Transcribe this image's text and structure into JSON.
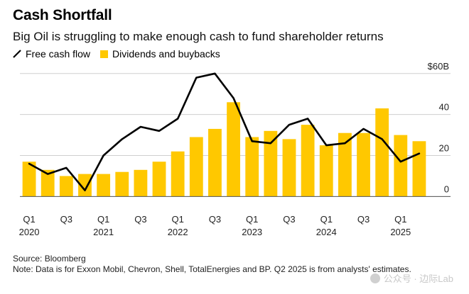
{
  "header": {
    "title": "Cash Shortfall",
    "subtitle": "Big Oil is struggling to make enough cash to fund shareholder returns"
  },
  "legend": {
    "line_label": "Free cash flow",
    "bar_label": "Dividends and buybacks"
  },
  "colors": {
    "bar": "#FFC800",
    "line": "#000000",
    "grid": "#cfcfcf"
  },
  "chart_data": {
    "type": "bar",
    "title": "Cash Shortfall",
    "categories": [
      "Q1 2020",
      "Q2 2020",
      "Q3 2020",
      "Q4 2020",
      "Q1 2021",
      "Q2 2021",
      "Q3 2021",
      "Q4 2021",
      "Q1 2022",
      "Q2 2022",
      "Q3 2022",
      "Q4 2022",
      "Q1 2023",
      "Q2 2023",
      "Q3 2023",
      "Q4 2023",
      "Q1 2024",
      "Q2 2024",
      "Q3 2024",
      "Q4 2024",
      "Q1 2025",
      "Q2 2025"
    ],
    "x_tick_labels": [
      {
        "index": 0,
        "quarter": "Q1",
        "year": "2020"
      },
      {
        "index": 2,
        "quarter": "Q3",
        "year": ""
      },
      {
        "index": 4,
        "quarter": "Q1",
        "year": "2021"
      },
      {
        "index": 6,
        "quarter": "Q3",
        "year": ""
      },
      {
        "index": 8,
        "quarter": "Q1",
        "year": "2022"
      },
      {
        "index": 10,
        "quarter": "Q3",
        "year": ""
      },
      {
        "index": 12,
        "quarter": "Q1",
        "year": "2023"
      },
      {
        "index": 14,
        "quarter": "Q3",
        "year": ""
      },
      {
        "index": 16,
        "quarter": "Q1",
        "year": "2024"
      },
      {
        "index": 18,
        "quarter": "Q3",
        "year": ""
      },
      {
        "index": 20,
        "quarter": "Q1",
        "year": "2025"
      }
    ],
    "series": [
      {
        "name": "Dividends and buybacks",
        "type": "bar",
        "values": [
          17,
          13,
          10,
          11,
          11,
          12,
          13,
          17,
          22,
          29,
          33,
          46,
          29,
          32,
          28,
          35,
          25,
          31,
          31,
          43,
          30,
          27
        ]
      },
      {
        "name": "Free cash flow",
        "type": "line",
        "values": [
          16,
          11,
          14,
          3,
          20,
          28,
          34,
          32,
          38,
          58,
          60,
          48,
          27,
          26,
          35,
          38,
          25,
          26,
          33,
          28,
          17,
          21
        ]
      }
    ],
    "ylim": [
      -4,
      62
    ],
    "yticks": [
      {
        "value": 0,
        "label": "0"
      },
      {
        "value": 20,
        "label": "20"
      },
      {
        "value": 40,
        "label": "40"
      },
      {
        "value": 60,
        "label": "$60B"
      }
    ],
    "xlabel": "",
    "ylabel": ""
  },
  "footer": {
    "source": "Source: Bloomberg",
    "note": "Note: Data is for Exxon Mobil, Chevron, Shell, TotalEnergies and BP. Q2 2025 is from analysts' estimates."
  },
  "watermark": {
    "text": "公众号 · 边际Lab"
  }
}
